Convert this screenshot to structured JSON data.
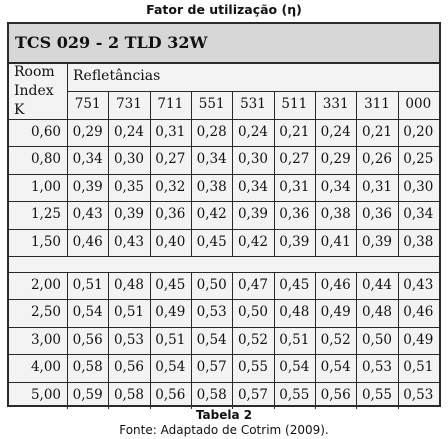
{
  "figure_title": "Fator de utilização (η)",
  "table": {
    "model": "TCS 029 - 2 TLD 32W",
    "row_header": [
      "Room",
      "Index",
      "K"
    ],
    "group_header": "Refletâncias",
    "columns": [
      "751",
      "731",
      "711",
      "551",
      "531",
      "511",
      "331",
      "311",
      "000"
    ],
    "rows_group1": [
      {
        "k": "0,60",
        "values": [
          "0,29",
          "0,24",
          "0,31",
          "0,28",
          "0,24",
          "0,21",
          "0,24",
          "0,21",
          "0,20"
        ]
      },
      {
        "k": "0,80",
        "values": [
          "0,34",
          "0,30",
          "0,27",
          "0,34",
          "0,30",
          "0,27",
          "0,29",
          "0,26",
          "0,25"
        ]
      },
      {
        "k": "1,00",
        "values": [
          "0,39",
          "0,35",
          "0,32",
          "0,38",
          "0,34",
          "0,31",
          "0,34",
          "0,31",
          "0,30"
        ]
      },
      {
        "k": "1,25",
        "values": [
          "0,43",
          "0,39",
          "0,36",
          "0,42",
          "0,39",
          "0,36",
          "0,38",
          "0,36",
          "0,34"
        ]
      },
      {
        "k": "1,50",
        "values": [
          "0,46",
          "0,43",
          "0,40",
          "0,45",
          "0,42",
          "0,39",
          "0,41",
          "0,39",
          "0,38"
        ]
      }
    ],
    "rows_group2": [
      {
        "k": "2,00",
        "values": [
          "0,51",
          "0,48",
          "0,45",
          "0,50",
          "0,47",
          "0,45",
          "0,46",
          "0,44",
          "0,43"
        ]
      },
      {
        "k": "2,50",
        "values": [
          "0,54",
          "0,51",
          "0,49",
          "0,53",
          "0,50",
          "0,48",
          "0,49",
          "0,48",
          "0,46"
        ]
      },
      {
        "k": "3,00",
        "values": [
          "0,56",
          "0,53",
          "0,51",
          "0,54",
          "0,52",
          "0,51",
          "0,52",
          "0,50",
          "0,49"
        ]
      },
      {
        "k": "4,00",
        "values": [
          "0,58",
          "0,56",
          "0,54",
          "0,57",
          "0,55",
          "0,54",
          "0,54",
          "0,53",
          "0,51"
        ]
      },
      {
        "k": "5,00",
        "values": [
          "0,59",
          "0,58",
          "0,56",
          "0,58",
          "0,57",
          "0,55",
          "0,56",
          "0,55",
          "0,53"
        ]
      }
    ]
  },
  "caption_label": "Tabela 2",
  "caption_source": "Fonte: Adaptado de Cotrim (2009)."
}
